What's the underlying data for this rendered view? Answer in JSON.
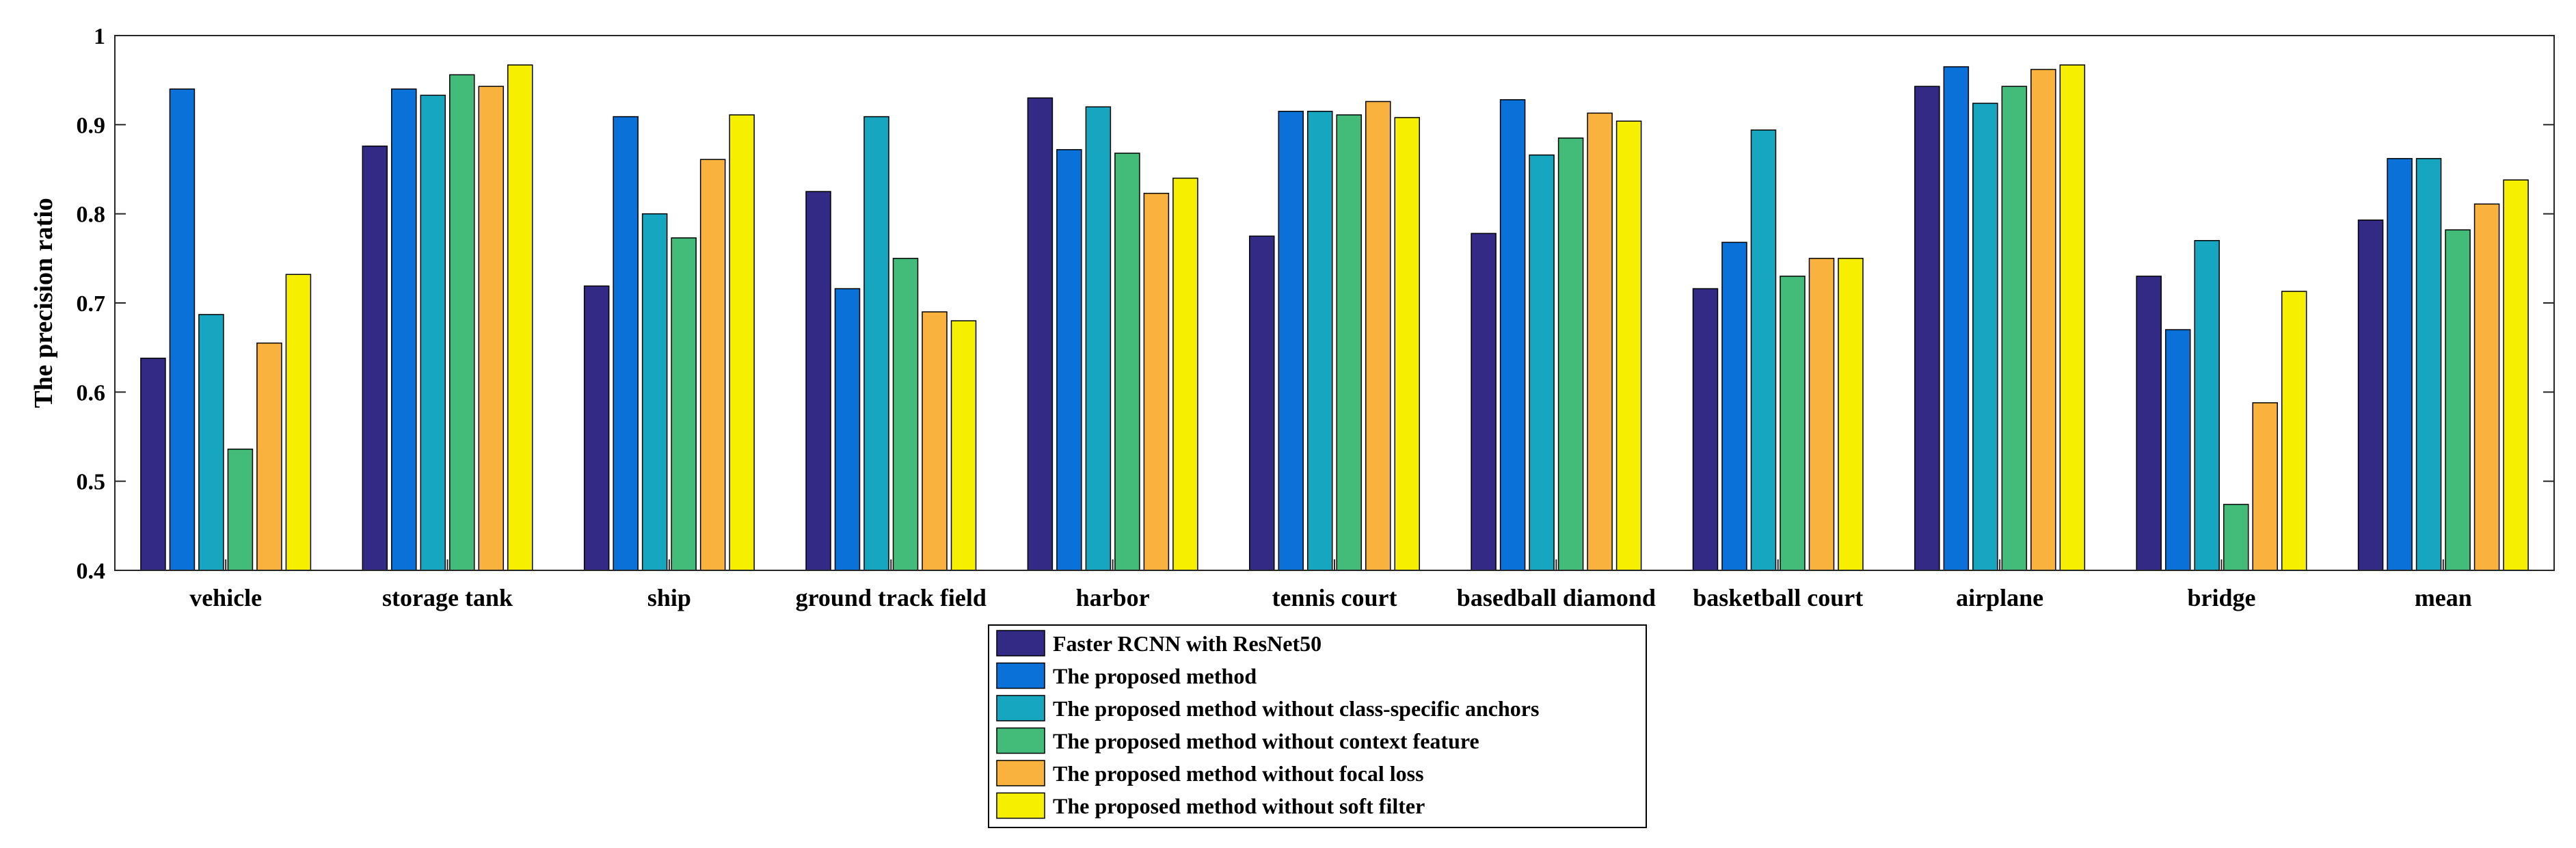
{
  "chart_data": {
    "type": "bar",
    "title": "",
    "xlabel": "",
    "ylabel": "The precision ratio",
    "ylim": [
      0.4,
      1.0
    ],
    "yticks": [
      0.4,
      0.5,
      0.6,
      0.7,
      0.8,
      0.9,
      1
    ],
    "ytick_labels": [
      "0.4",
      "0.5",
      "0.6",
      "0.7",
      "0.8",
      "0.9",
      "1"
    ],
    "grid": false,
    "legend_position": "bottom-center",
    "categories": [
      "vehicle",
      "storage tank",
      "ship",
      "ground track field",
      "harbor",
      "tennis court",
      "basedball diamond",
      "basketball court",
      "airplane",
      "bridge",
      "mean"
    ],
    "series": [
      {
        "name": "Faster RCNN with ResNet50",
        "color": "#332a85",
        "values": [
          0.638,
          0.876,
          0.719,
          0.825,
          0.93,
          0.775,
          0.778,
          0.716,
          0.943,
          0.73,
          0.793
        ]
      },
      {
        "name": "The proposed method",
        "color": "#0a71d8",
        "values": [
          0.94,
          0.94,
          0.909,
          0.716,
          0.872,
          0.915,
          0.928,
          0.768,
          0.965,
          0.67,
          0.862
        ]
      },
      {
        "name": "The proposed method without class-specific anchors",
        "color": "#17a6c0",
        "values": [
          0.687,
          0.933,
          0.8,
          0.909,
          0.92,
          0.915,
          0.866,
          0.894,
          0.924,
          0.77,
          0.862
        ]
      },
      {
        "name": "The proposed method without context feature",
        "color": "#43bb79",
        "values": [
          0.536,
          0.956,
          0.773,
          0.75,
          0.868,
          0.911,
          0.885,
          0.73,
          0.943,
          0.474,
          0.782
        ]
      },
      {
        "name": "The proposed method without focal loss",
        "color": "#f9b23d",
        "values": [
          0.655,
          0.943,
          0.861,
          0.69,
          0.823,
          0.926,
          0.913,
          0.75,
          0.962,
          0.588,
          0.811
        ]
      },
      {
        "name": "The proposed method without soft filter",
        "color": "#f6f000",
        "values": [
          0.732,
          0.967,
          0.911,
          0.68,
          0.84,
          0.908,
          0.904,
          0.75,
          0.967,
          0.713,
          0.838
        ]
      }
    ]
  }
}
